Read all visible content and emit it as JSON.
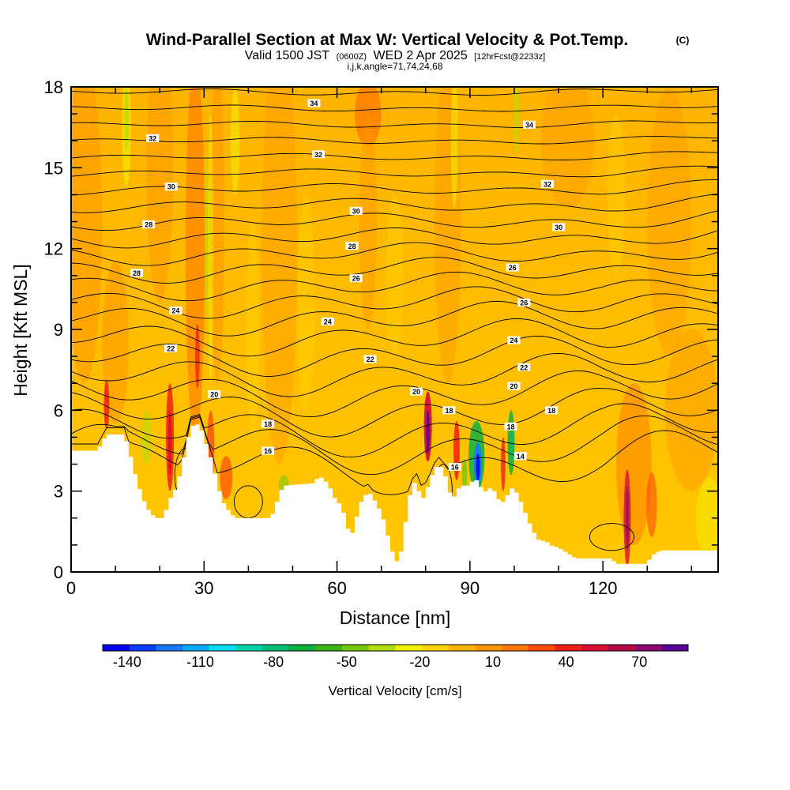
{
  "title": {
    "main": "Wind-Parallel Section at Max W: Vertical Velocity & Pot.Temp.",
    "mark": "(C)",
    "valid_prefix": "Valid 1500 JST",
    "valid_utc": "(0600Z)",
    "valid_date": "WED 2 Apr 2025",
    "forecast": "[12hrFcst@2233z]",
    "indices": "i,j,k,angle=71,74,24,68"
  },
  "colorbar": {
    "label": "Vertical Velocity [cm/s]",
    "tick_labels": [
      "-140",
      "-110",
      "-80",
      "-50",
      "-20",
      "10",
      "40",
      "70"
    ],
    "colors": [
      "#0000f0",
      "#0a3cff",
      "#1478ff",
      "#0aaaff",
      "#00dcf0",
      "#00d2aa",
      "#00be73",
      "#10b040",
      "#3cb418",
      "#78c80a",
      "#b4dc0a",
      "#f0f000",
      "#ffd200",
      "#ffb400",
      "#ff9600",
      "#ff7800",
      "#ff4b0a",
      "#f01e14",
      "#d70f32",
      "#b40a46",
      "#8c0a6e",
      "#5a0096"
    ]
  },
  "chart_data": {
    "type": "contour",
    "title": "Wind-Parallel Section at Max W: Vertical Velocity & Pot.Temp.",
    "xlabel": "Distance [nm]",
    "ylabel": "Height [Kft MSL]",
    "xlim": [
      0,
      146
    ],
    "ylim": [
      0,
      18
    ],
    "x_ticks": [
      "0",
      "30",
      "60",
      "90",
      "120"
    ],
    "y_ticks": [
      "0",
      "3",
      "6",
      "9",
      "12",
      "15",
      "18"
    ],
    "fill_variable": "Vertical Velocity [cm/s]",
    "fill_range": [
      -150,
      90
    ],
    "contour_variable": "Potential temperature",
    "contour_levels": [
      14,
      16,
      18,
      20,
      22,
      24,
      26,
      28,
      30,
      32,
      34
    ],
    "contour_labels": [
      {
        "text": "34",
        "x": 54.8,
        "y": 17.4
      },
      {
        "text": "34",
        "x": 103.4,
        "y": 16.6
      },
      {
        "text": "32",
        "x": 18.4,
        "y": 16.1
      },
      {
        "text": "32",
        "x": 55.8,
        "y": 15.5
      },
      {
        "text": "32",
        "x": 107.5,
        "y": 14.4
      },
      {
        "text": "30",
        "x": 22.6,
        "y": 14.3
      },
      {
        "text": "30",
        "x": 64.3,
        "y": 13.4
      },
      {
        "text": "30",
        "x": 110.0,
        "y": 12.8
      },
      {
        "text": "28",
        "x": 17.5,
        "y": 12.9
      },
      {
        "text": "28",
        "x": 63.4,
        "y": 12.1
      },
      {
        "text": "28",
        "x": 14.8,
        "y": 11.1
      },
      {
        "text": "26",
        "x": 64.3,
        "y": 10.9
      },
      {
        "text": "26",
        "x": 99.6,
        "y": 11.3
      },
      {
        "text": "26",
        "x": 102.2,
        "y": 10.0
      },
      {
        "text": "24",
        "x": 23.6,
        "y": 9.7
      },
      {
        "text": "24",
        "x": 57.9,
        "y": 9.3
      },
      {
        "text": "24",
        "x": 99.9,
        "y": 8.6
      },
      {
        "text": "22",
        "x": 22.5,
        "y": 8.3
      },
      {
        "text": "22",
        "x": 67.5,
        "y": 7.9
      },
      {
        "text": "22",
        "x": 102.2,
        "y": 7.6
      },
      {
        "text": "20",
        "x": 32.3,
        "y": 6.6
      },
      {
        "text": "20",
        "x": 77.9,
        "y": 6.7
      },
      {
        "text": "20",
        "x": 99.9,
        "y": 6.9
      },
      {
        "text": "18",
        "x": 44.4,
        "y": 5.5
      },
      {
        "text": "18",
        "x": 85.3,
        "y": 6.0
      },
      {
        "text": "18",
        "x": 108.4,
        "y": 6.0
      },
      {
        "text": "18",
        "x": 99.2,
        "y": 5.4
      },
      {
        "text": "16",
        "x": 44.4,
        "y": 4.5
      },
      {
        "text": "16",
        "x": 86.6,
        "y": 3.9
      },
      {
        "text": "14",
        "x": 101.4,
        "y": 4.3
      }
    ]
  }
}
